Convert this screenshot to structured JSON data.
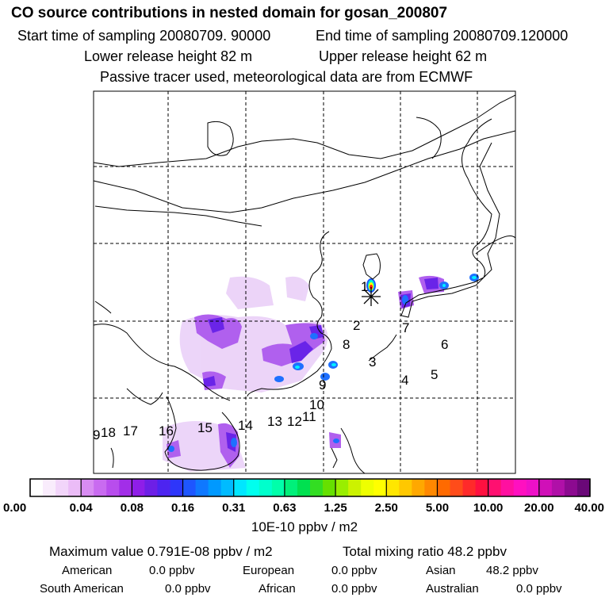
{
  "header": {
    "title": "CO  source contributions in nested domain for gosan_200807",
    "start_time": "Start time of sampling 20080709. 90000",
    "end_time": "End time of sampling 20080709.120000",
    "lower_height": "Lower release height   82 m",
    "upper_height": "Upper release height   62 m",
    "note": "Passive tracer used, meteorological data are from ECMWF"
  },
  "map": {
    "receptor_symbol": "asterisk-icon",
    "region_labels": [
      "1",
      "2",
      "3",
      "4",
      "5",
      "6",
      "7",
      "8",
      "9",
      "10",
      "11",
      "12",
      "13",
      "14",
      "15",
      "16",
      "17",
      "18",
      "9"
    ],
    "colors": {
      "violet_light": "#e6c4f7",
      "violet": "#a040f0",
      "purple": "#7a1de6",
      "blue": "#1f55ff",
      "cyan": "#00f0ff",
      "red": "#ff1a1a",
      "yellow": "#ffff00"
    }
  },
  "colorbar": {
    "ticks": [
      "0.00",
      "0.04",
      "0.08",
      "0.16",
      "0.31",
      "0.63",
      "1.25",
      "2.50",
      "5.00",
      "10.00",
      "20.00",
      "40.00"
    ],
    "colors": [
      [
        "#ffffff",
        "#f9ecfc",
        "#f2d5fa",
        "#ebbcf7"
      ],
      [
        "#d88cf2",
        "#c96bf0",
        "#b84ded",
        "#a22ee8"
      ],
      [
        "#8f1ee8",
        "#6d1fe6",
        "#4d24f0",
        "#2e36fa"
      ],
      [
        "#1e56ff",
        "#0f78ff",
        "#0099ff",
        "#00bbff"
      ],
      [
        "#00e6ff",
        "#00ffee",
        "#00ffcc",
        "#00ffaa"
      ],
      [
        "#00f07a",
        "#00e050",
        "#33dd22",
        "#66e000"
      ],
      [
        "#99ee00",
        "#ccf200",
        "#eeff00",
        "#ffff00"
      ],
      [
        "#ffe600",
        "#ffc800",
        "#ffa800",
        "#ff8800"
      ],
      [
        "#ff6a00",
        "#ff4c1a",
        "#ff2a2a",
        "#ff1040"
      ],
      [
        "#ff1070",
        "#ff10a0",
        "#ff10c0",
        "#ee10c8"
      ],
      [
        "#d010b8",
        "#b010a8",
        "#8c0a90",
        "#6a0878"
      ]
    ],
    "unit": "10E-10 ppbv / m2"
  },
  "summary": {
    "max_value": "Maximum value  0.791E-08 ppbv / m2",
    "total_mixing": "Total mixing ratio       48.2 ppbv",
    "contributions": [
      {
        "name": "American",
        "value": "0.0 ppbv"
      },
      {
        "name": "European",
        "value": "0.0 ppbv"
      },
      {
        "name": "Asian",
        "value": "48.2 ppbv"
      },
      {
        "name": "South American",
        "value": "0.0 ppbv"
      },
      {
        "name": "African",
        "value": "0.0 ppbv"
      },
      {
        "name": "Australian",
        "value": "0.0 ppbv"
      }
    ]
  }
}
